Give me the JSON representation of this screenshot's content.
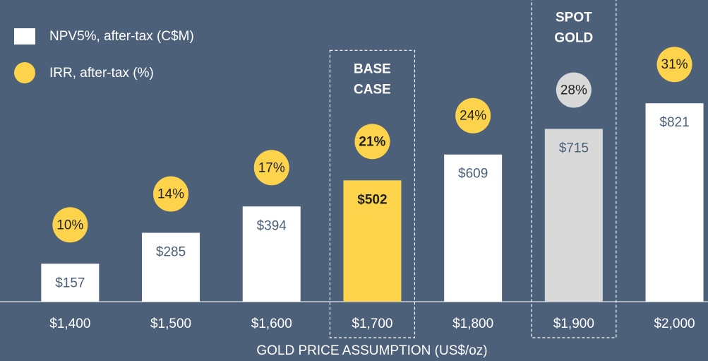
{
  "chart_data": {
    "type": "bar",
    "x_label": "GOLD PRICE ASSUMPTION (US$/oz)",
    "categories": [
      "$1,400",
      "$1,500",
      "$1,600",
      "$1,700",
      "$1,800",
      "$1,900",
      "$2,000"
    ],
    "series": [
      {
        "name": "NPV5%, after-tax (C$M)",
        "color": "#ffffff",
        "colors": [
          "#ffffff",
          "#ffffff",
          "#ffffff",
          "#fdd34c",
          "#ffffff",
          "#d9d9d9",
          "#ffffff"
        ],
        "values": [
          157,
          285,
          394,
          502,
          609,
          715,
          821
        ],
        "value_labels": [
          "$157",
          "$285",
          "$394",
          "$502",
          "$609",
          "$715",
          "$821"
        ]
      },
      {
        "name": "IRR, after-tax (%)",
        "color": "#fdd34c",
        "colors": [
          "#fdd34c",
          "#fdd34c",
          "#fdd34c",
          "#fdd34c",
          "#fdd34c",
          "#d9d9d9",
          "#fdd34c"
        ],
        "values": [
          10,
          14,
          17,
          21,
          24,
          28,
          31
        ],
        "value_labels": [
          "10%",
          "14%",
          "17%",
          "21%",
          "24%",
          "28%",
          "31%"
        ]
      }
    ],
    "annotations": [
      {
        "category": "$1,700",
        "lines": [
          "BASE",
          "CASE"
        ]
      },
      {
        "category": "$1,900",
        "lines": [
          "SPOT",
          "GOLD"
        ]
      }
    ]
  }
}
